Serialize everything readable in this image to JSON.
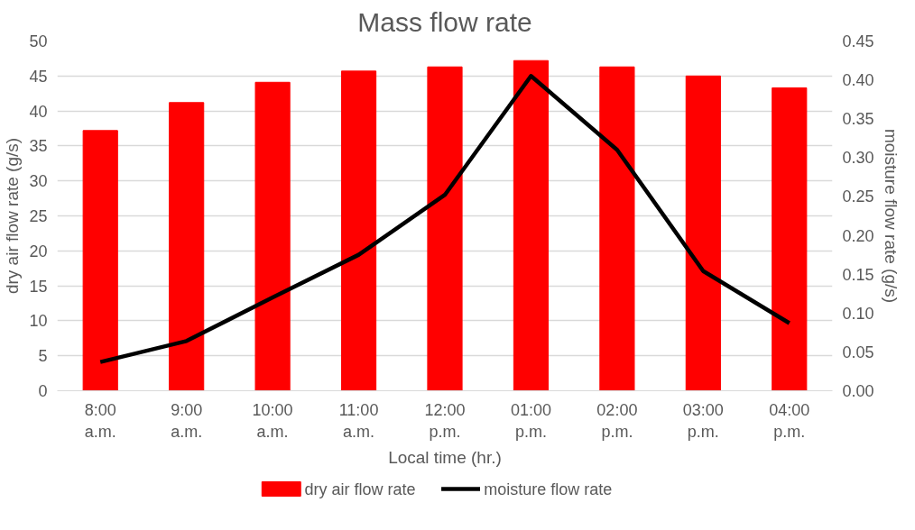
{
  "chart_data": {
    "type": "bar",
    "title": "Mass flow rate",
    "xlabel": "Local time (hr.)",
    "ylabel": "dry air flow rate (g/s)",
    "y2label": "moisture flow rate (g/s)",
    "categories": [
      "8:00\na.m.",
      "9:00\na.m.",
      "10:00\na.m.",
      "11:00\na.m.",
      "12:00\np.m.",
      "01:00\np.m.",
      "02:00\np.m.",
      "03:00\np.m.",
      "04:00\np.m."
    ],
    "series": [
      {
        "name": "dry air flow rate",
        "color": "#ff0000",
        "values": [
          37.2,
          41.2,
          44.1,
          45.7,
          46.3,
          47.2,
          46.3,
          45.0,
          43.3
        ]
      },
      {
        "name": "moisture flow rate",
        "type": "line",
        "axis": "y2",
        "color": "#000000",
        "values": [
          0.037,
          0.064,
          0.12,
          0.175,
          0.252,
          0.405,
          0.31,
          0.154,
          0.087
        ]
      }
    ],
    "ylim": [
      0,
      50
    ],
    "yticks": [
      0,
      5,
      10,
      15,
      20,
      25,
      30,
      35,
      40,
      45,
      50
    ],
    "y2lim": [
      0,
      0.45
    ],
    "y2ticks": [
      {
        "value": 0,
        "label": "0.00"
      },
      {
        "value": 0.05,
        "label": "0.05"
      },
      {
        "value": 0.1,
        "label": "0.10"
      },
      {
        "value": 0.15,
        "label": "0.15"
      },
      {
        "value": 0.2,
        "label": "0.20"
      },
      {
        "value": 0.25,
        "label": "0.25"
      },
      {
        "value": 0.3,
        "label": "0.30"
      },
      {
        "value": 0.35,
        "label": "0.35"
      },
      {
        "value": 0.4,
        "label": "0.40"
      },
      {
        "value": 0.45,
        "label": "0.45"
      }
    ],
    "grid": "y",
    "legend": "bottom",
    "line_style": "solid",
    "marker": "none"
  }
}
